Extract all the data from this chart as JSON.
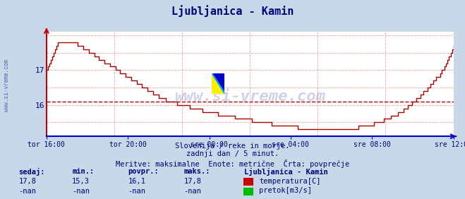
{
  "title": "Ljubljanica - Kamin",
  "title_color": "#000080",
  "bg_color": "#c8d8e8",
  "plot_bg_color": "#ffffff",
  "grid_color": "#ffb0b0",
  "avg_value": 16.1,
  "ymin": 15.1,
  "ymax": 18.1,
  "yticks": [
    16,
    17
  ],
  "x_tick_labels": [
    "tor 16:00",
    "tor 20:00",
    "sre 00:00",
    "sre 04:00",
    "sre 08:00",
    "sre 12:00"
  ],
  "tick_color": "#000080",
  "line_color": "#aa0000",
  "avg_line_color": "#aa0000",
  "subtitle1": "Slovenija / reke in morje.",
  "subtitle2": "zadnji dan / 5 minut.",
  "subtitle3": "Meritve: maksimalne  Enote: metrične  Črta: povprečje",
  "subtitle_color": "#000080",
  "watermark": "www.si-vreme.com",
  "watermark_color": "#000080",
  "watermark_alpha": 0.18,
  "left_label": "www.si-vreme.com",
  "legend_title": "Ljubljanica - Kamin",
  "legend_items": [
    {
      "label": "temperatura[C]",
      "color": "#cc0000"
    },
    {
      "label": "pretok[m3/s]",
      "color": "#00bb00"
    }
  ],
  "stats_headers": [
    "sedaj:",
    "min.:",
    "povpr.:",
    "maks.:"
  ],
  "stats_temp": [
    "17,8",
    "15,3",
    "16,1",
    "17,8"
  ],
  "stats_pretok": [
    "-nan",
    "-nan",
    "-nan",
    "-nan"
  ],
  "n_points": 288
}
